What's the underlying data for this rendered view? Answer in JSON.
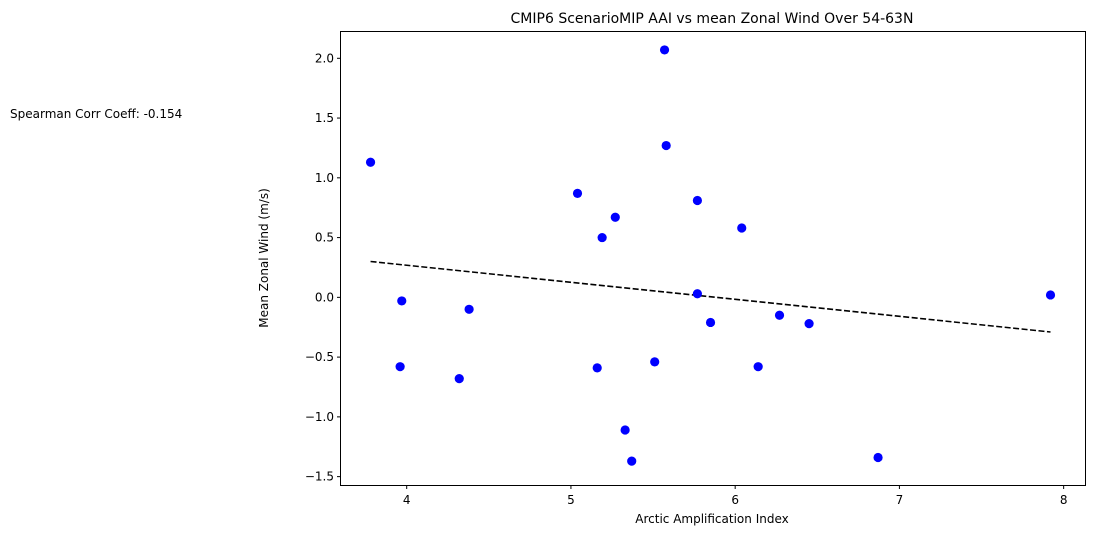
{
  "chart_data": {
    "type": "scatter",
    "title": "CMIP6 ScenarioMIP AAI vs mean Zonal Wind Over 54-63N",
    "xlabel": "Arctic Amplification Index",
    "ylabel": "Mean Zonal Wind (m/s)",
    "xlim": [
      3.6,
      8.13
    ],
    "ylim": [
      -1.57,
      2.22
    ],
    "xticks": [
      4,
      5,
      6,
      7,
      8
    ],
    "yticks": [
      -1.5,
      -1.0,
      -0.5,
      0.0,
      0.5,
      1.0,
      1.5,
      2.0
    ],
    "ytick_labels": [
      "−1.5",
      "−1.0",
      "−0.5",
      "0.0",
      "0.5",
      "1.0",
      "1.5",
      "2.0"
    ],
    "grid": false,
    "point_color": "#0000ff",
    "trendline_color": "#000000",
    "points": [
      {
        "x": 3.78,
        "y": 1.13
      },
      {
        "x": 3.96,
        "y": -0.58
      },
      {
        "x": 3.97,
        "y": -0.03
      },
      {
        "x": 4.32,
        "y": -0.68
      },
      {
        "x": 4.38,
        "y": -0.1
      },
      {
        "x": 5.04,
        "y": 0.87
      },
      {
        "x": 5.16,
        "y": -0.59
      },
      {
        "x": 5.19,
        "y": 0.5
      },
      {
        "x": 5.27,
        "y": 0.67
      },
      {
        "x": 5.33,
        "y": -1.11
      },
      {
        "x": 5.37,
        "y": -1.37
      },
      {
        "x": 5.51,
        "y": -0.54
      },
      {
        "x": 5.57,
        "y": 2.07
      },
      {
        "x": 5.58,
        "y": 1.27
      },
      {
        "x": 5.77,
        "y": 0.81
      },
      {
        "x": 5.77,
        "y": 0.03
      },
      {
        "x": 5.85,
        "y": -0.21
      },
      {
        "x": 6.04,
        "y": 0.58
      },
      {
        "x": 6.14,
        "y": -0.58
      },
      {
        "x": 6.27,
        "y": -0.15
      },
      {
        "x": 6.45,
        "y": -0.22
      },
      {
        "x": 6.87,
        "y": -1.34
      },
      {
        "x": 7.92,
        "y": 0.02
      }
    ],
    "trendline": [
      {
        "x": 3.78,
        "y": 0.3
      },
      {
        "x": 7.92,
        "y": -0.29
      }
    ],
    "annotation": "Spearman Corr Coeff: -0.154"
  }
}
